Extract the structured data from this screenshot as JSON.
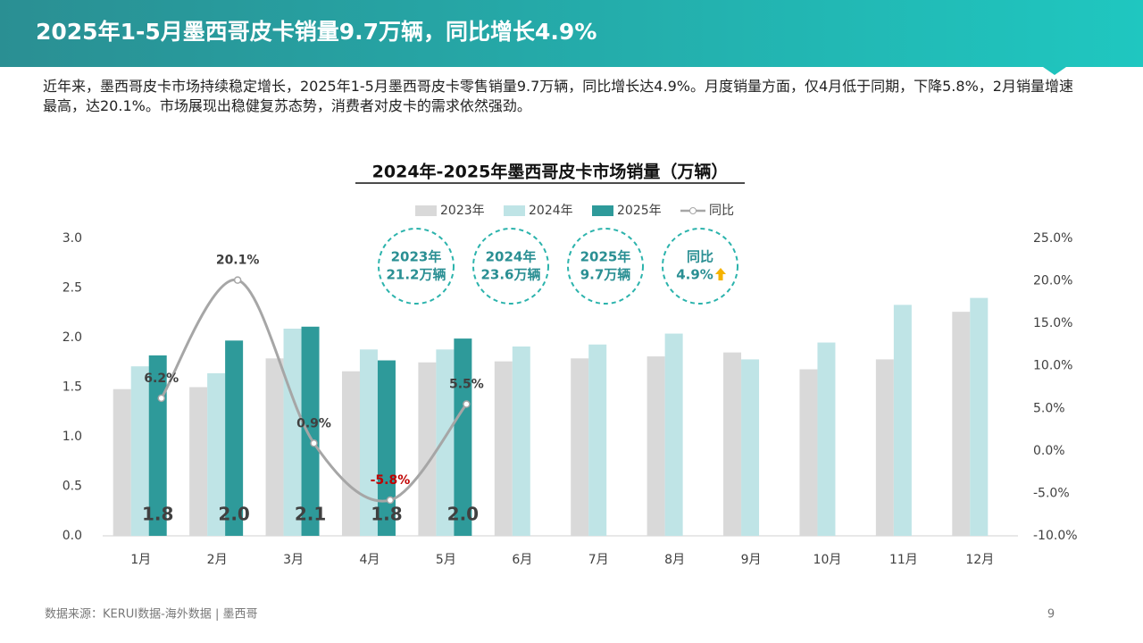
{
  "header": {
    "title": "2025年1-5月墨西哥皮卡销量9.7万辆，同比增长4.9%"
  },
  "summary": "近年来，墨西哥皮卡市场持续稳定增长，2025年1-5月墨西哥皮卡零售销量9.7万辆，同比增长达4.9%。月度销量方面，仅4月低于同期，下降5.8%，2月销量增速最高，达20.1%。市场展现出稳健复苏态势，消费者对皮卡的需求依然强劲。",
  "badges": [
    [
      "2023年",
      "21.2万辆"
    ],
    [
      "2024年",
      "23.6万辆"
    ],
    [
      "2025年",
      "9.7万辆"
    ],
    [
      "同比",
      "4.9%"
    ]
  ],
  "footer": {
    "source": "数据来源：KERUI数据-海外数据 | 墨西哥",
    "page": "9"
  },
  "chart_data": {
    "type": "bar",
    "title": "2024年-2025年墨西哥皮卡市场销量（万辆）",
    "categories": [
      "1月",
      "2月",
      "3月",
      "4月",
      "5月",
      "6月",
      "7月",
      "8月",
      "9月",
      "10月",
      "11月",
      "12月"
    ],
    "series": [
      {
        "name": "2023年",
        "color": "#d9d9d9",
        "values": [
          1.48,
          1.5,
          1.79,
          1.66,
          1.75,
          1.76,
          1.79,
          1.81,
          1.85,
          1.68,
          1.78,
          2.26
        ]
      },
      {
        "name": "2024年",
        "color": "#bfe4e6",
        "values": [
          1.71,
          1.64,
          2.09,
          1.88,
          1.88,
          1.91,
          1.93,
          2.04,
          1.78,
          1.95,
          2.33,
          2.4
        ]
      },
      {
        "name": "2025年",
        "color": "#2e9a9a",
        "values": [
          1.82,
          1.97,
          2.11,
          1.77,
          1.99,
          null,
          null,
          null,
          null,
          null,
          null,
          null
        ],
        "value_labels": [
          "1.8",
          "2.0",
          "2.1",
          "1.8",
          "2.0",
          null,
          null,
          null,
          null,
          null,
          null,
          null
        ]
      },
      {
        "name": "同比",
        "type": "line",
        "axis": "y2",
        "color": "#a6a6a6",
        "values": [
          6.2,
          20.1,
          0.9,
          -5.8,
          5.5,
          null,
          null,
          null,
          null,
          null,
          null,
          null
        ],
        "value_labels": [
          "6.2%",
          "20.1%",
          "0.9%",
          "-5.8%",
          "5.5%",
          null,
          null,
          null,
          null,
          null,
          null,
          null
        ]
      }
    ],
    "ylim": [
      0,
      3.0
    ],
    "yticks": [
      {
        "value": 0,
        "label": "0.0"
      },
      0.5,
      {
        "value": 1,
        "label": "1.0"
      },
      1.5,
      {
        "value": 2,
        "label": "2.0"
      },
      2.5,
      {
        "value": 3,
        "label": "3.0"
      }
    ],
    "y2lim": [
      -10,
      25
    ],
    "y2ticks": [
      {
        "value": -10,
        "label": "-10.0%"
      },
      {
        "value": -5,
        "label": "-5.0%"
      },
      {
        "value": 0,
        "label": "0.0%"
      },
      {
        "value": 5,
        "label": "5.0%"
      },
      {
        "value": 10,
        "label": "10.0%"
      },
      {
        "value": 15,
        "label": "15.0%"
      },
      {
        "value": 20,
        "label": "20.0%"
      },
      {
        "value": 25,
        "label": "25.0%"
      }
    ],
    "grid": false
  }
}
